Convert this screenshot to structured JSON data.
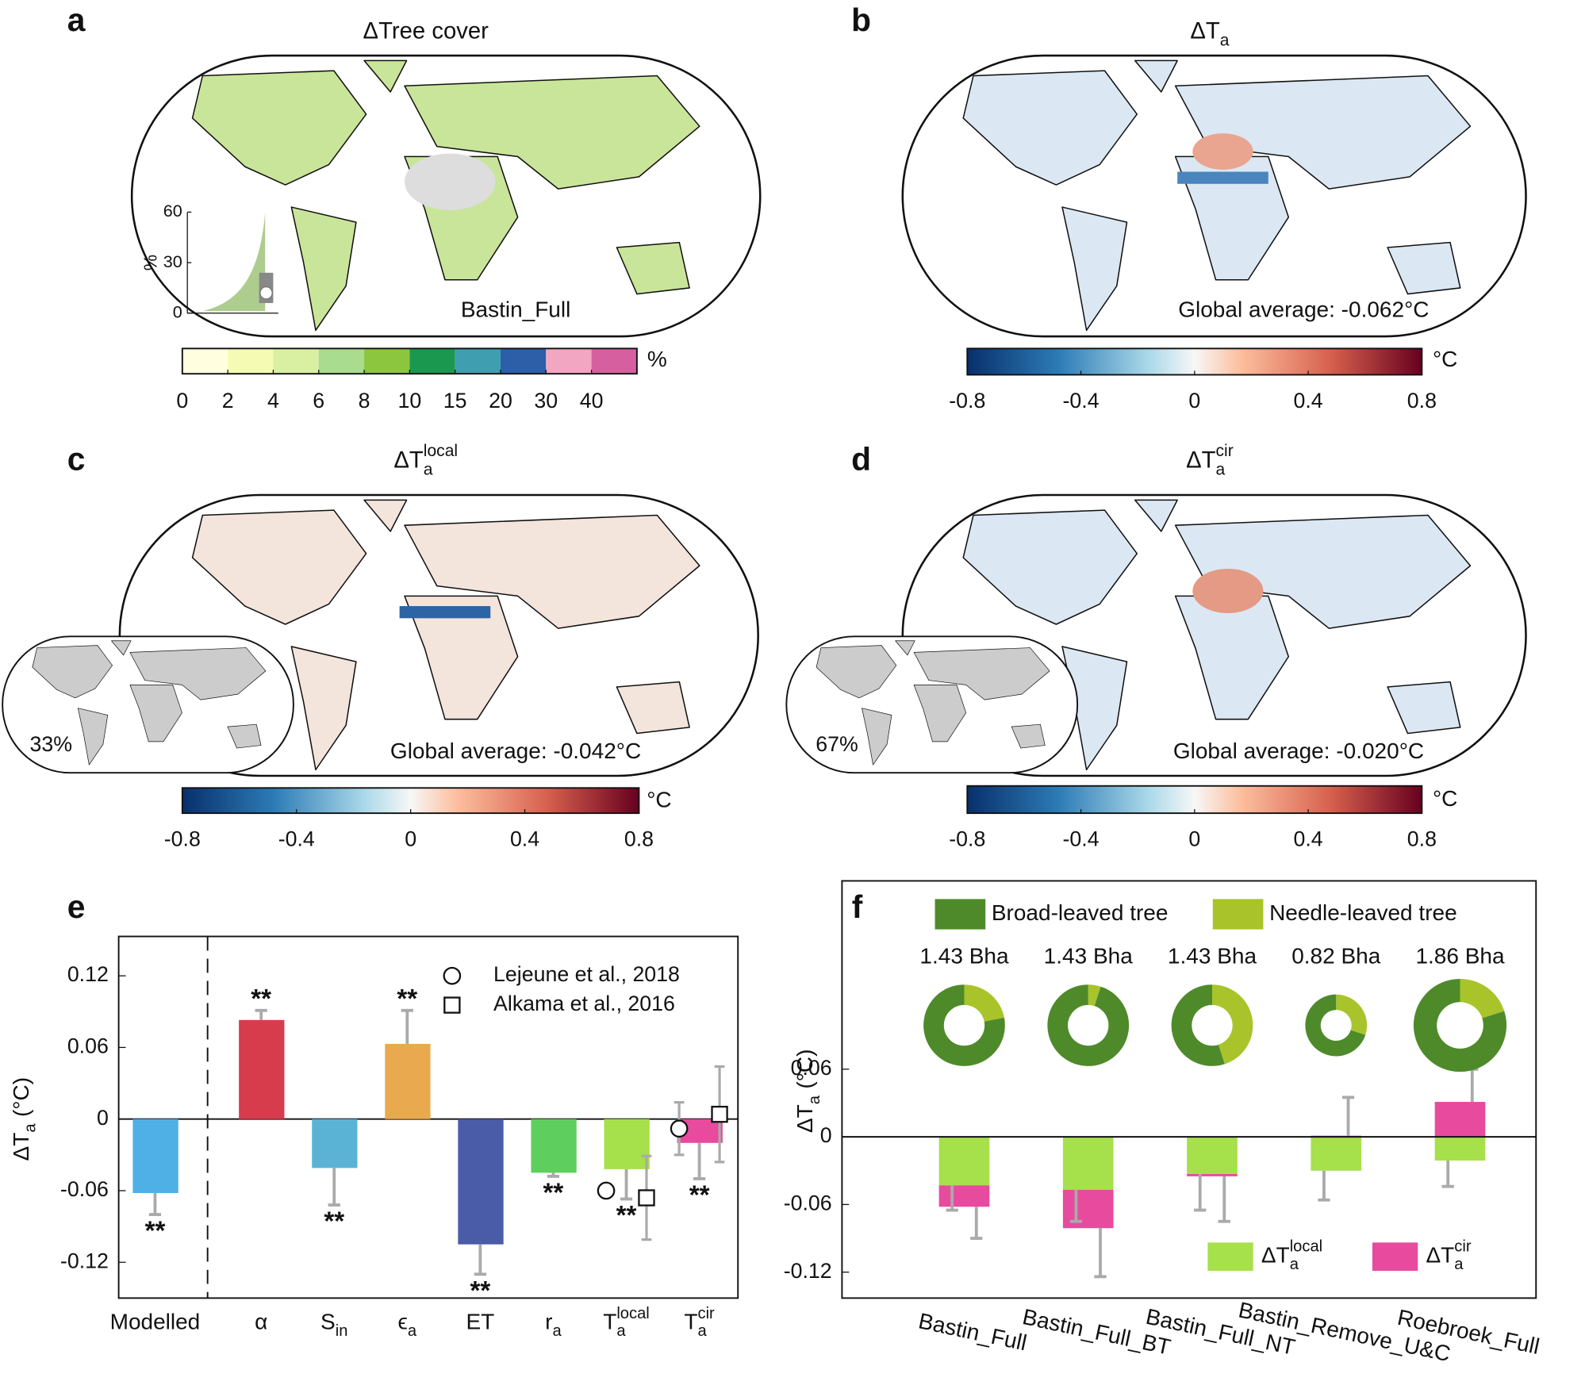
{
  "chart_data": [
    {
      "type": "map",
      "panel_label": "a",
      "title": "ΔTree cover",
      "annotation": "Bastin_Full",
      "colorbar_colors": [
        "#ffffe0",
        "#f6fbb4",
        "#d9f0a3",
        "#a9dc8e",
        "#8cc63f",
        "#1a9850",
        "#3f9fb0",
        "#2c5fa8",
        "#f2a6c2",
        "#d6609f"
      ],
      "colorbar_labels": [
        0,
        2,
        4,
        6,
        8,
        10,
        15,
        20,
        30,
        40
      ],
      "colorbar_unit": "%",
      "inset": {
        "type": "violin",
        "y_label": "%",
        "ylim": [
          0,
          60
        ],
        "yticks": [
          0,
          30,
          60
        ],
        "median": 12
      }
    },
    {
      "type": "map",
      "panel_label": "b",
      "title": "ΔT",
      "title_sub": "a",
      "annotation": "Global average: -0.062°C",
      "colorbar_lim": [
        -0.8,
        0.8
      ],
      "colorbar_ticks": [
        -0.8,
        -0.4,
        0,
        0.4,
        0.8
      ],
      "colorbar_unit": "°C"
    },
    {
      "type": "map",
      "panel_label": "c",
      "title": "ΔT",
      "title_sub": "a",
      "title_sup": "local",
      "annotation": "Global average: -0.042°C",
      "inset_label": "33%",
      "colorbar_lim": [
        -0.8,
        0.8
      ],
      "colorbar_ticks": [
        -0.8,
        -0.4,
        0,
        0.4,
        0.8
      ],
      "colorbar_unit": "°C"
    },
    {
      "type": "map",
      "panel_label": "d",
      "title": "ΔT",
      "title_sub": "a",
      "title_sup": "cir",
      "annotation": "Global average: -0.020°C",
      "inset_label": "67%",
      "colorbar_lim": [
        -0.8,
        0.8
      ],
      "colorbar_ticks": [
        -0.8,
        -0.4,
        0,
        0.4,
        0.8
      ],
      "colorbar_unit": "°C"
    },
    {
      "type": "bar",
      "panel_label": "e",
      "y_label": "ΔT",
      "y_label_sub": "a",
      "y_label_suffix": "(°C)",
      "categories": [
        "Modelled",
        "α",
        "S",
        "ϵ",
        "ET",
        "r",
        "T",
        "T"
      ],
      "category_subs": [
        null,
        null,
        "in",
        "a",
        null,
        "a",
        "a",
        "a"
      ],
      "category_sups": [
        null,
        null,
        null,
        null,
        null,
        null,
        "local",
        "cir"
      ],
      "values": [
        -0.062,
        0.083,
        -0.041,
        0.063,
        -0.105,
        -0.045,
        -0.042,
        -0.02
      ],
      "errors": [
        0.018,
        0.008,
        0.031,
        0.028,
        0.025,
        0.003,
        0.025,
        0.03
      ],
      "colors": [
        "#4fb0e6",
        "#d63c4c",
        "#5ab3d5",
        "#e9a94f",
        "#4a5ba8",
        "#5ecf5e",
        "#a6e04a",
        "#e84a9e"
      ],
      "significance": [
        "**",
        "**",
        "**",
        "**",
        "**",
        "**",
        "**",
        "**"
      ],
      "ylim": [
        -0.15,
        0.153
      ],
      "yticks": [
        -0.12,
        -0.06,
        0,
        0.06,
        0.12
      ],
      "reference_series": [
        {
          "name": "Lejeune et al., 2018",
          "marker": "circle",
          "values": [
            null,
            null,
            null,
            null,
            null,
            null,
            -0.06,
            -0.008
          ],
          "errors": [
            null,
            null,
            null,
            null,
            null,
            null,
            null,
            0.022
          ]
        },
        {
          "name": "Alkama et al., 2016",
          "marker": "square",
          "values": [
            null,
            null,
            null,
            null,
            null,
            null,
            -0.066,
            0.004
          ],
          "errors": [
            null,
            null,
            null,
            null,
            null,
            null,
            0.035,
            0.04
          ]
        }
      ]
    },
    {
      "type": "stacked_bar",
      "panel_label": "f",
      "y_label": "ΔT",
      "y_label_sub": "a",
      "y_label_suffix": "(°C)",
      "categories": [
        "Bastin_Full",
        "Bastin_Full_BT",
        "Bastin_Full_NT",
        "Bastin_Remove_U&C",
        "Roebroek_Full"
      ],
      "series": [
        {
          "name": "ΔT",
          "name_sub": "a",
          "name_sup": "local",
          "color": "#a6e04a",
          "values": [
            -0.043,
            -0.047,
            -0.033,
            -0.03,
            -0.021
          ],
          "errors": [
            0.022,
            0.028,
            0.032,
            0.026,
            0.023
          ]
        },
        {
          "name": "ΔT",
          "name_sub": "a",
          "name_sup": "cir",
          "color": "#e84a9e",
          "values": [
            -0.019,
            -0.034,
            -0.002,
            0.001,
            0.031
          ],
          "errors": [
            0.028,
            0.043,
            0.04,
            0.034,
            0.029
          ]
        }
      ],
      "ylim": [
        -0.143,
        0.227
      ],
      "yticks": [
        -0.12,
        -0.06,
        0,
        0.06
      ],
      "areas": [
        1.43,
        1.43,
        1.43,
        0.82,
        1.86
      ],
      "area_labels": [
        "1.43 Bha",
        "1.43 Bha",
        "1.43 Bha",
        "0.82 Bha",
        "1.86 Bha"
      ],
      "donut_series": [
        {
          "name": "Broad-leaved tree",
          "color": "#4e8a2a",
          "values": [
            78,
            95,
            55,
            70,
            80
          ]
        },
        {
          "name": "Needle-leaved tree",
          "color": "#a8c42a",
          "values": [
            22,
            5,
            45,
            30,
            20
          ]
        }
      ]
    }
  ]
}
